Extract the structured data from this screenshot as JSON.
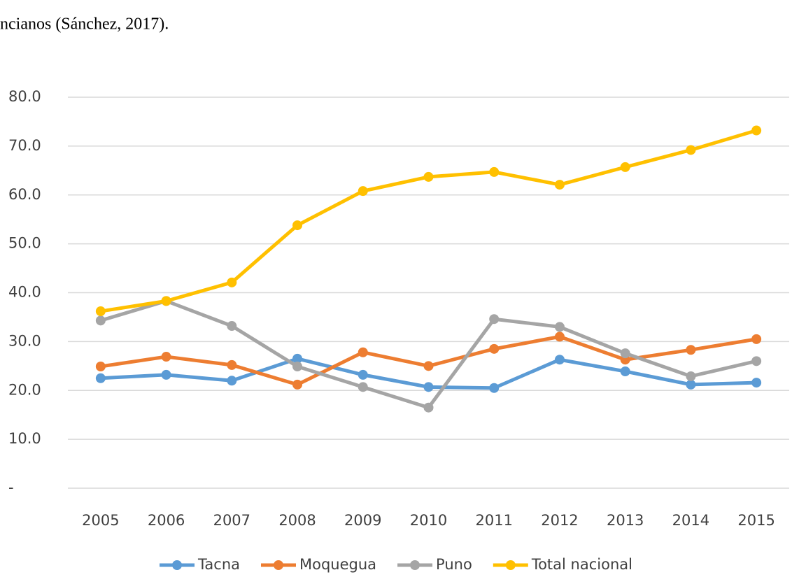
{
  "caption": "ncianos (Sánchez, 2017).",
  "chart_data": {
    "type": "line",
    "categories": [
      "2005",
      "2006",
      "2007",
      "2008",
      "2009",
      "2010",
      "2011",
      "2012",
      "2013",
      "2014",
      "2015"
    ],
    "series": [
      {
        "name": "Tacna",
        "color": "#5b9bd5",
        "values": [
          22.5,
          23.2,
          22.0,
          26.5,
          23.2,
          20.7,
          20.5,
          26.3,
          23.9,
          21.2,
          21.6
        ]
      },
      {
        "name": "Moquegua",
        "color": "#ed7d31",
        "values": [
          24.9,
          26.9,
          25.2,
          21.2,
          27.8,
          25.0,
          28.5,
          31.0,
          26.3,
          28.3,
          30.5
        ]
      },
      {
        "name": "Puno",
        "color": "#a5a5a5",
        "values": [
          34.3,
          38.3,
          33.2,
          24.9,
          20.7,
          16.5,
          34.6,
          33.0,
          27.6,
          22.9,
          26.0
        ]
      },
      {
        "name": "Total nacional",
        "color": "#ffc000",
        "values": [
          36.2,
          38.3,
          42.1,
          53.8,
          60.8,
          63.7,
          64.7,
          62.1,
          65.7,
          69.2,
          73.2
        ]
      }
    ],
    "ylim": [
      0,
      80
    ],
    "yticks": [
      {
        "value": 0,
        "label": "-"
      },
      {
        "value": 10,
        "label": "10.0"
      },
      {
        "value": 20,
        "label": "20.0"
      },
      {
        "value": 30,
        "label": "30.0"
      },
      {
        "value": 40,
        "label": "40.0"
      },
      {
        "value": 50,
        "label": "50.0"
      },
      {
        "value": 60,
        "label": "60.0"
      },
      {
        "value": 70,
        "label": "70.0"
      },
      {
        "value": 80,
        "label": "80.0"
      }
    ],
    "grid": true,
    "legend": "bottom"
  }
}
